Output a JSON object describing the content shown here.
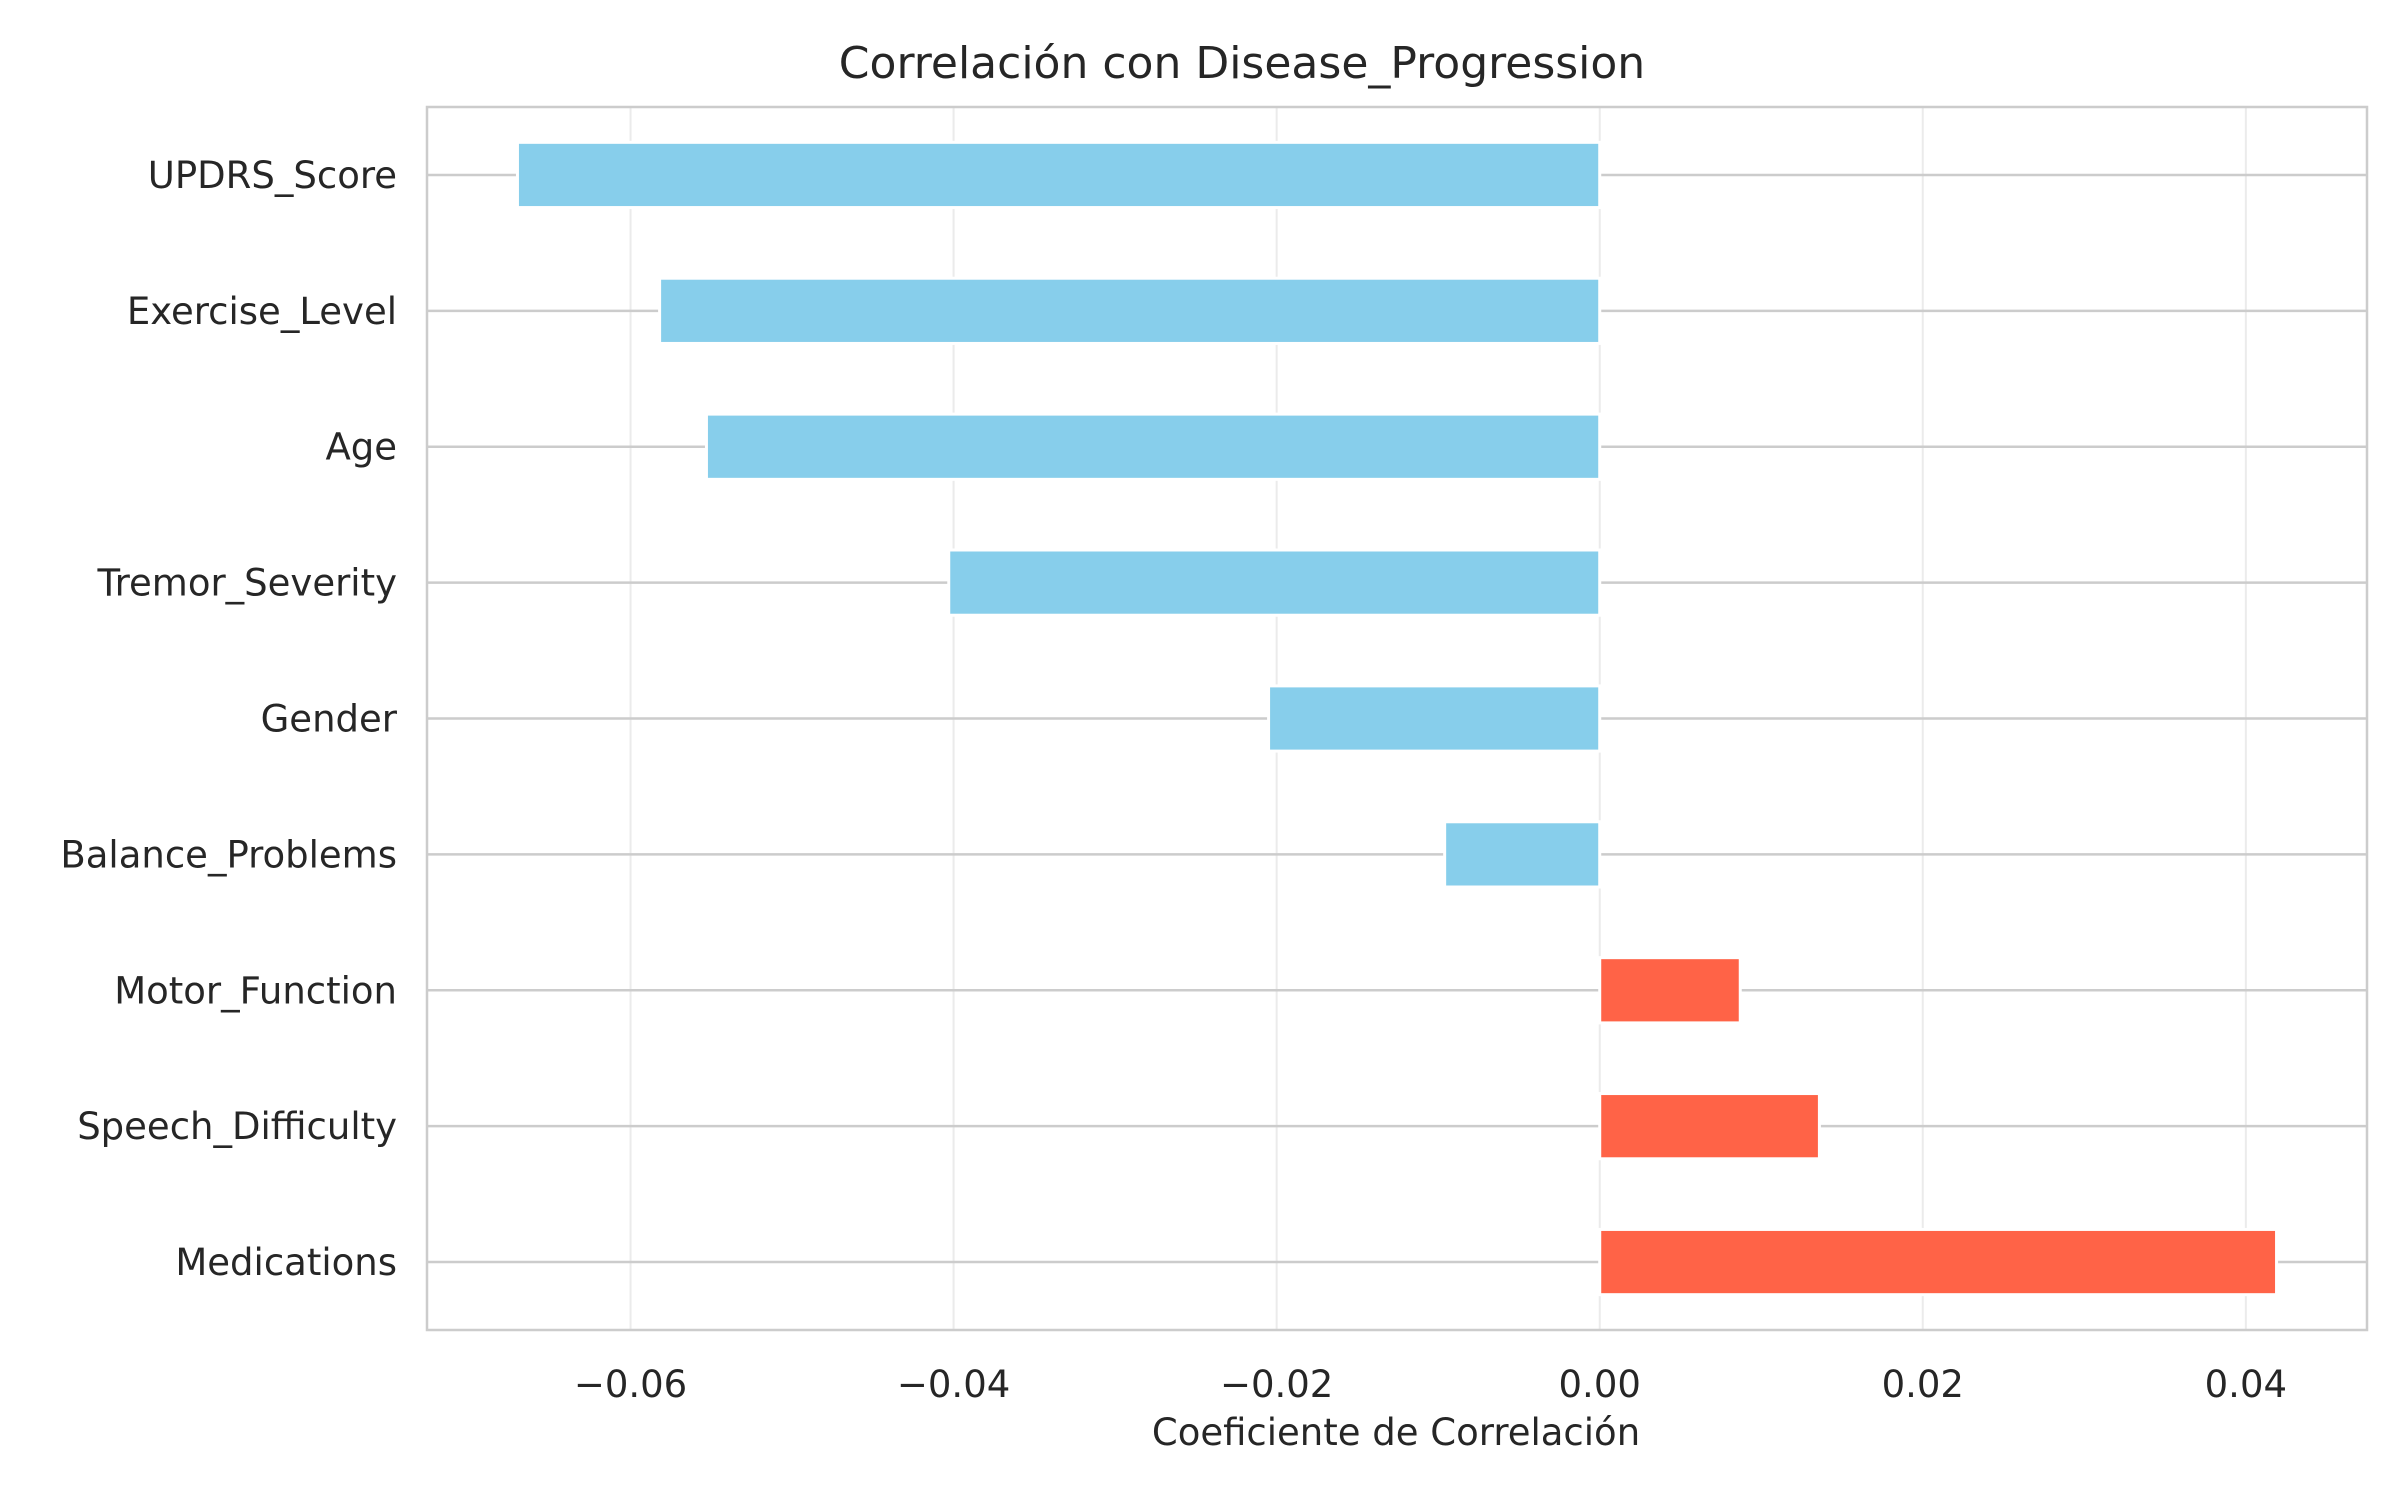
{
  "chart_data": {
    "type": "bar",
    "orientation": "horizontal",
    "title": "Correlación con Disease_Progression",
    "xlabel": "Coeficiente de Correlación",
    "ylabel": "",
    "categories": [
      "UPDRS_Score",
      "Exercise_Level",
      "Age",
      "Tremor_Severity",
      "Gender",
      "Balance_Problems",
      "Motor_Function",
      "Speech_Difficulty",
      "Medications"
    ],
    "values": [
      -0.067,
      -0.0582,
      -0.0553,
      -0.0403,
      -0.0205,
      -0.0096,
      0.0087,
      0.0136,
      0.0419
    ],
    "xlim": [
      -0.0726,
      0.0475
    ],
    "xticks": [
      -0.06,
      -0.04,
      -0.02,
      0.0,
      0.02,
      0.04
    ],
    "xtick_labels": [
      "−0.06",
      "−0.04",
      "−0.02",
      "0.00",
      "0.02",
      "0.04"
    ],
    "grid": true,
    "colors": {
      "negative": "#87CEEB",
      "positive": "#FF6347",
      "grid": "#EBEBEB",
      "axis": "#CCCCCC"
    }
  }
}
